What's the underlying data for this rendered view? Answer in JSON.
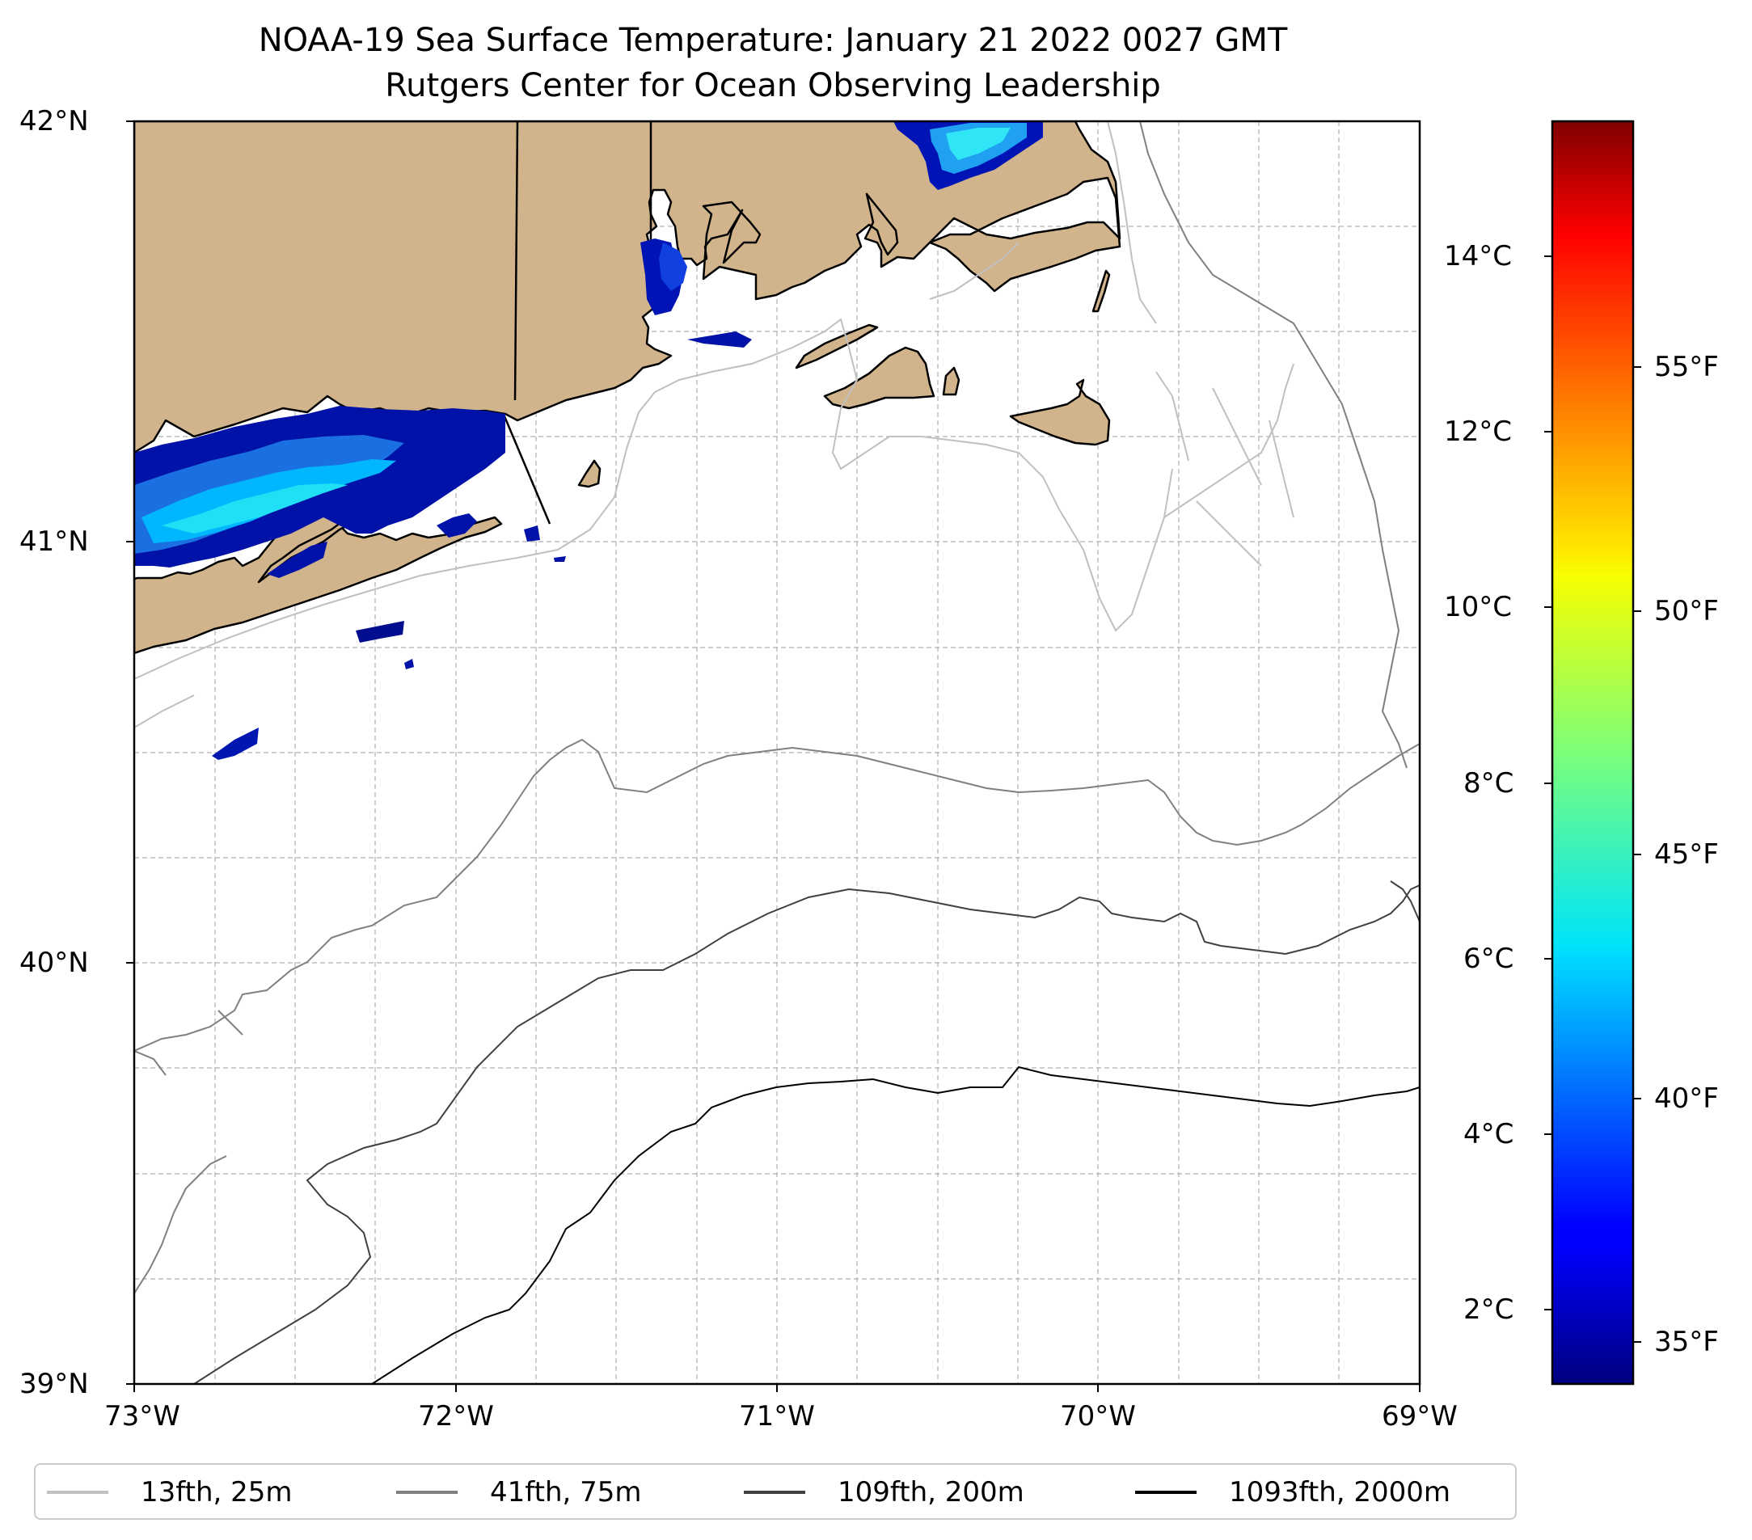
{
  "title": {
    "line1": "NOAA-19 Sea Surface Temperature: January 21 2022 0027 GMT",
    "line2": "Rutgers Center for Ocean Observing Leadership"
  },
  "map": {
    "lat_range": [
      39,
      42
    ],
    "lon_range": [
      -73,
      -69
    ],
    "y_tick_labels": [
      "42°N",
      "41°N",
      "40°N",
      "39°N"
    ],
    "x_tick_labels": [
      "73°W",
      "72°W",
      "71°W",
      "70°W",
      "69°W"
    ],
    "colors": {
      "land": "#d2b48c",
      "coast": "#000000",
      "grid": "#b0b0b0"
    },
    "features": [
      "Long Island",
      "Rhode Island",
      "Cape Cod",
      "Martha's Vineyard",
      "Nantucket"
    ]
  },
  "colorbar": {
    "colormap": "jet",
    "celsius_labels": [
      "14°C",
      "12°C",
      "10°C",
      "8°C",
      "6°C",
      "4°C",
      "2°C"
    ],
    "fahrenheit_labels": [
      "55°F",
      "50°F",
      "45°F",
      "40°F",
      "35°F"
    ],
    "range_c": [
      1.2,
      15.7
    ]
  },
  "legend": {
    "items": [
      {
        "label": "13fth, 25m",
        "color": "#c0c0c0"
      },
      {
        "label": "41fth, 75m",
        "color": "#808080"
      },
      {
        "label": "109fth, 200m",
        "color": "#404040"
      },
      {
        "label": "1093fth, 2000m",
        "color": "#000000"
      }
    ]
  }
}
